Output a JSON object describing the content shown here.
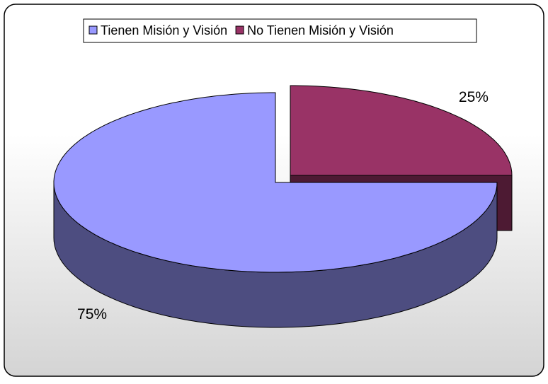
{
  "chart_data": {
    "type": "pie3d",
    "categories": [
      "Tienen Misión y Visión",
      "No Tienen Misión y Visión"
    ],
    "values": [
      75,
      25
    ],
    "value_labels": [
      "75%",
      "25%"
    ],
    "colors": [
      "#9999ff",
      "#993366"
    ],
    "exploded": [
      false,
      true
    ],
    "legend": "top"
  }
}
